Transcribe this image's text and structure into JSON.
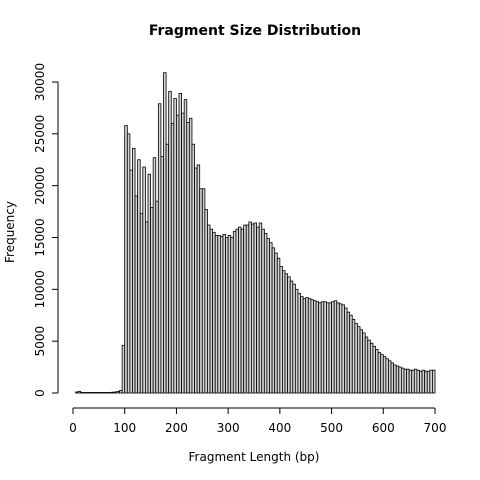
{
  "chart_data": {
    "type": "bar",
    "title": "Fragment Size Distribution",
    "xlabel": "Fragment Length (bp)",
    "ylabel": "Frequency",
    "xlim": [
      0,
      700
    ],
    "ylim": [
      0,
      31000
    ],
    "bin_width": 5,
    "x_ticks": [
      0,
      100,
      200,
      300,
      400,
      500,
      600,
      700
    ],
    "y_ticks": [
      0,
      5000,
      10000,
      15000,
      20000,
      25000,
      30000
    ],
    "grid": false,
    "legend": "none",
    "bar_color": "#d3d3d3",
    "bins": [
      [
        0,
        0
      ],
      [
        5,
        100
      ],
      [
        10,
        150
      ],
      [
        15,
        50
      ],
      [
        20,
        50
      ],
      [
        25,
        50
      ],
      [
        30,
        50
      ],
      [
        35,
        50
      ],
      [
        40,
        50
      ],
      [
        45,
        50
      ],
      [
        50,
        50
      ],
      [
        55,
        50
      ],
      [
        60,
        50
      ],
      [
        65,
        50
      ],
      [
        70,
        50
      ],
      [
        75,
        80
      ],
      [
        80,
        100
      ],
      [
        85,
        150
      ],
      [
        90,
        250
      ],
      [
        95,
        4600
      ],
      [
        100,
        25800
      ],
      [
        105,
        25000
      ],
      [
        110,
        21500
      ],
      [
        115,
        23600
      ],
      [
        120,
        19000
      ],
      [
        125,
        22500
      ],
      [
        130,
        17300
      ],
      [
        135,
        21800
      ],
      [
        140,
        16500
      ],
      [
        145,
        21100
      ],
      [
        150,
        17900
      ],
      [
        155,
        22700
      ],
      [
        160,
        18500
      ],
      [
        165,
        27900
      ],
      [
        170,
        22800
      ],
      [
        175,
        30900
      ],
      [
        180,
        24000
      ],
      [
        185,
        29100
      ],
      [
        190,
        26000
      ],
      [
        195,
        28400
      ],
      [
        200,
        26800
      ],
      [
        205,
        28900
      ],
      [
        210,
        27000
      ],
      [
        215,
        28300
      ],
      [
        220,
        26100
      ],
      [
        225,
        26500
      ],
      [
        230,
        24000
      ],
      [
        235,
        21700
      ],
      [
        240,
        22000
      ],
      [
        245,
        19700
      ],
      [
        250,
        19700
      ],
      [
        255,
        17700
      ],
      [
        260,
        16200
      ],
      [
        265,
        15800
      ],
      [
        270,
        15500
      ],
      [
        275,
        15200
      ],
      [
        280,
        15200
      ],
      [
        285,
        15100
      ],
      [
        290,
        15300
      ],
      [
        295,
        15000
      ],
      [
        300,
        15200
      ],
      [
        305,
        15000
      ],
      [
        310,
        15600
      ],
      [
        315,
        15800
      ],
      [
        320,
        16000
      ],
      [
        325,
        15800
      ],
      [
        330,
        16200
      ],
      [
        335,
        16200
      ],
      [
        340,
        16500
      ],
      [
        345,
        16300
      ],
      [
        350,
        16400
      ],
      [
        355,
        16000
      ],
      [
        360,
        16400
      ],
      [
        365,
        15800
      ],
      [
        370,
        15400
      ],
      [
        375,
        14900
      ],
      [
        380,
        14500
      ],
      [
        385,
        14000
      ],
      [
        390,
        13500
      ],
      [
        395,
        13000
      ],
      [
        400,
        12200
      ],
      [
        405,
        11800
      ],
      [
        410,
        11500
      ],
      [
        415,
        11200
      ],
      [
        420,
        10800
      ],
      [
        425,
        10500
      ],
      [
        430,
        10000
      ],
      [
        435,
        9600
      ],
      [
        440,
        9300
      ],
      [
        445,
        9100
      ],
      [
        450,
        9200
      ],
      [
        455,
        9100
      ],
      [
        460,
        9000
      ],
      [
        465,
        8900
      ],
      [
        470,
        8800
      ],
      [
        475,
        8700
      ],
      [
        480,
        8800
      ],
      [
        485,
        8800
      ],
      [
        490,
        8700
      ],
      [
        495,
        8700
      ],
      [
        500,
        8800
      ],
      [
        505,
        8900
      ],
      [
        510,
        8700
      ],
      [
        515,
        8600
      ],
      [
        520,
        8500
      ],
      [
        525,
        8200
      ],
      [
        530,
        7800
      ],
      [
        535,
        7500
      ],
      [
        540,
        7100
      ],
      [
        545,
        6700
      ],
      [
        550,
        6400
      ],
      [
        555,
        6100
      ],
      [
        560,
        5800
      ],
      [
        565,
        5400
      ],
      [
        570,
        5100
      ],
      [
        575,
        4800
      ],
      [
        580,
        4500
      ],
      [
        585,
        4200
      ],
      [
        590,
        3900
      ],
      [
        595,
        3700
      ],
      [
        600,
        3500
      ],
      [
        605,
        3300
      ],
      [
        610,
        3100
      ],
      [
        615,
        2900
      ],
      [
        620,
        2700
      ],
      [
        625,
        2600
      ],
      [
        630,
        2500
      ],
      [
        635,
        2400
      ],
      [
        640,
        2300
      ],
      [
        645,
        2300
      ],
      [
        650,
        2200
      ],
      [
        655,
        2200
      ],
      [
        660,
        2300
      ],
      [
        665,
        2200
      ],
      [
        670,
        2100
      ],
      [
        675,
        2200
      ],
      [
        680,
        2100
      ],
      [
        685,
        2100
      ],
      [
        690,
        2200
      ],
      [
        695,
        2200
      ]
    ]
  }
}
